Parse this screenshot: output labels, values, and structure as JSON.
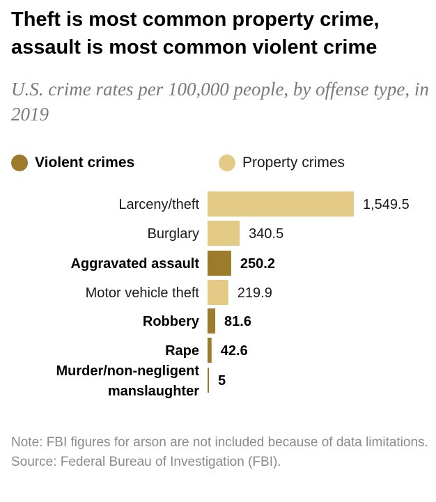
{
  "title": "Theft is most common property crime, assault is most common violent crime",
  "subtitle": "U.S. crime rates per 100,000 people, by offense type, in 2019",
  "colors": {
    "violent": "#9c7c2a",
    "property": "#e3cb86"
  },
  "legend": [
    {
      "name": "Violent crimes",
      "color": "#9c7c2a"
    },
    {
      "name": "Property crimes",
      "color": "#e3cb86"
    }
  ],
  "chart_data": {
    "type": "bar",
    "orientation": "horizontal",
    "categories": [
      "Larceny/theft",
      "Burglary",
      "Aggravated assault",
      "Motor vehicle theft",
      "Robbery",
      "Rape",
      "Murder/non-negligent manslaughter"
    ],
    "values": [
      1549.5,
      340.5,
      250.2,
      219.9,
      81.6,
      42.6,
      5
    ],
    "value_labels": [
      "1,549.5",
      "340.5",
      "250.2",
      "219.9",
      "81.6",
      "42.6",
      "5"
    ],
    "group": [
      "Property crimes",
      "Property crimes",
      "Violent crimes",
      "Property crimes",
      "Violent crimes",
      "Violent crimes",
      "Violent crimes"
    ],
    "series": [
      {
        "name": "Violent crimes",
        "color": "#9c7c2a"
      },
      {
        "name": "Property crimes",
        "color": "#e3cb86"
      }
    ],
    "xlim": [
      0,
      1549.5
    ],
    "grid": false,
    "legend_position": "top"
  },
  "footer": {
    "note": "Note: FBI figures for arson are not included because of data limitations.",
    "source": "Source: Federal Bureau of Investigation (FBI)."
  }
}
